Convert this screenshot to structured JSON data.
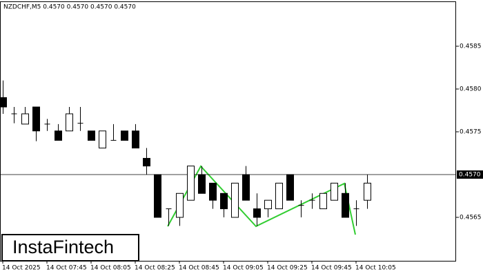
{
  "chart_data": {
    "type": "candlestick",
    "title": "NZDCHF,M5  0.4570 0.4570 0.4570 0.4570",
    "watermark": "InstaFintech",
    "categories": [
      "14 Oct 2025",
      null,
      null,
      null,
      "14 Oct 07:45",
      null,
      null,
      null,
      "14 Oct 08:05",
      null,
      null,
      null,
      "14 Oct 08:25",
      null,
      null,
      null,
      "14 Oct 08:45",
      null,
      null,
      null,
      "14 Oct 09:05",
      null,
      null,
      null,
      "14 Oct 09:25",
      null,
      null,
      null,
      "14 Oct 09:45",
      null,
      null,
      null,
      "14 Oct 10:05",
      null
    ],
    "open": [
      0.4579,
      0.45771,
      0.45759,
      0.45779,
      0.45759,
      0.45751,
      0.45751,
      0.4576,
      0.45751,
      0.45731,
      0.4574,
      0.45751,
      0.45751,
      0.45719,
      0.457,
      0.4566,
      0.4565,
      0.4567,
      0.457,
      0.4569,
      0.45678,
      0.4565,
      0.457,
      0.4566,
      0.4566,
      0.4566,
      0.457,
      0.45664,
      0.4567,
      0.4566,
      0.4567,
      0.45678,
      0.4566,
      0.4567
    ],
    "high": [
      0.4581,
      0.45779,
      0.45779,
      0.45779,
      0.45765,
      0.45759,
      0.45779,
      0.45779,
      0.45751,
      0.45751,
      0.45759,
      0.45751,
      0.45759,
      0.45731,
      0.457,
      0.4566,
      0.45678,
      0.4571,
      0.4571,
      0.4569,
      0.45678,
      0.4569,
      0.4571,
      0.45678,
      0.4567,
      0.4569,
      0.457,
      0.4567,
      0.45678,
      0.45678,
      0.4569,
      0.4569,
      0.4567,
      0.457
    ],
    "low": [
      0.45771,
      0.4576,
      0.45759,
      0.45739,
      0.45751,
      0.4574,
      0.45751,
      0.45751,
      0.4574,
      0.45731,
      0.4574,
      0.4574,
      0.45731,
      0.457,
      0.4565,
      0.4564,
      0.4564,
      0.4567,
      0.45678,
      0.4566,
      0.4565,
      0.4565,
      0.4567,
      0.4564,
      0.4565,
      0.4566,
      0.4567,
      0.4565,
      0.4566,
      0.4566,
      0.4567,
      0.4565,
      0.4564,
      0.4566
    ],
    "close": [
      0.45779,
      0.45771,
      0.45771,
      0.45751,
      0.45759,
      0.4574,
      0.45771,
      0.4576,
      0.4574,
      0.45751,
      0.4574,
      0.4574,
      0.45731,
      0.4571,
      0.4565,
      0.4566,
      0.45678,
      0.4571,
      0.45678,
      0.4567,
      0.4566,
      0.4569,
      0.4567,
      0.4565,
      0.4567,
      0.4569,
      0.4567,
      0.45664,
      0.4567,
      0.45678,
      0.4569,
      0.4565,
      0.4566,
      0.4569
    ],
    "up_color": "#ffffff",
    "down_color": "#000000",
    "ylim": [
      0.456,
      0.459
    ],
    "yticks": [
      0.4565,
      0.4575,
      {
        "value": 0.458,
        "label": "0.4580"
      },
      0.4585
    ],
    "price_line": {
      "value": 0.457,
      "label": "0.4570"
    }
  }
}
